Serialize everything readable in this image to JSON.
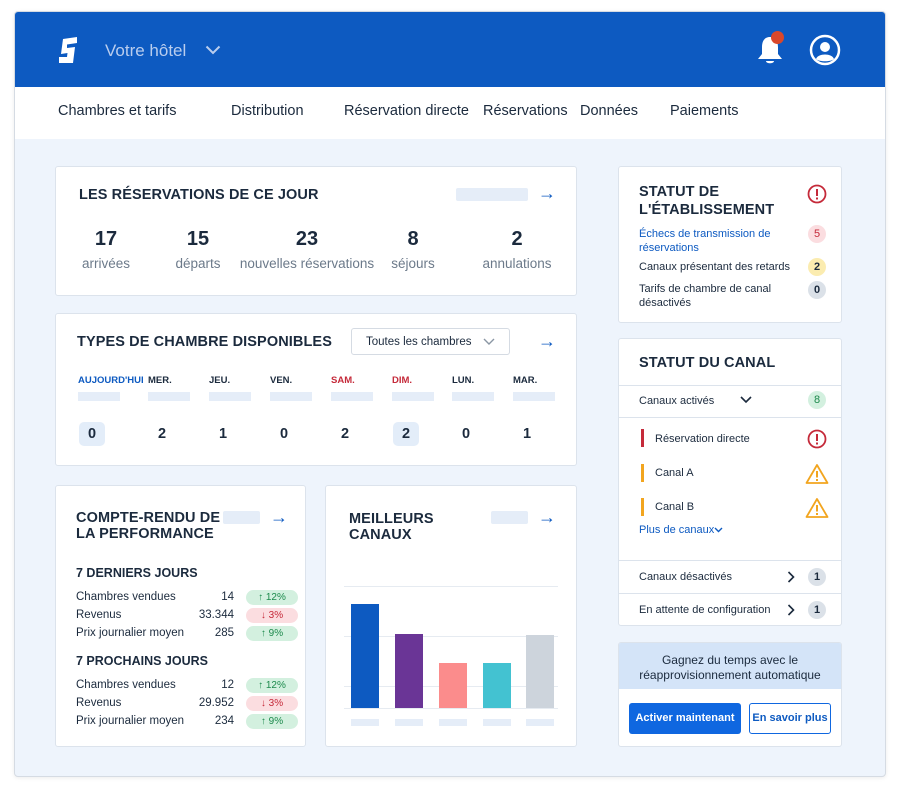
{
  "header": {
    "hotel_name": "Votre hôtel",
    "brand_color": "#0d5ac1"
  },
  "nav": {
    "items": [
      "Chambres et tarifs",
      "Distribution",
      "Réservation directe",
      "Réservations",
      "Données",
      "Paiements"
    ]
  },
  "today": {
    "title": "LES RÉSERVATIONS DE CE JOUR",
    "stats": [
      {
        "value": "17",
        "label": "arrivées"
      },
      {
        "value": "15",
        "label": "départs"
      },
      {
        "value": "23",
        "label": "nouvelles réservations"
      },
      {
        "value": "8",
        "label": "séjours"
      },
      {
        "value": "2",
        "label": "annulations"
      }
    ]
  },
  "room_types": {
    "title": "TYPES DE CHAMBRE DISPONIBLES",
    "filter": "Toutes les chambres",
    "days": [
      {
        "label": "AUJOURD'HUI",
        "value": "0",
        "color": "#0d5ac1",
        "highlight": true
      },
      {
        "label": "MER.",
        "value": "2",
        "color": "#1b2a3d",
        "highlight": false
      },
      {
        "label": "JEU.",
        "value": "1",
        "color": "#1b2a3d",
        "highlight": false
      },
      {
        "label": "VEN.",
        "value": "0",
        "color": "#1b2a3d",
        "highlight": false
      },
      {
        "label": "SAM.",
        "value": "2",
        "color": "#c52a3a",
        "highlight": false
      },
      {
        "label": "DIM.",
        "value": "2",
        "color": "#c52a3a",
        "highlight": true
      },
      {
        "label": "LUN.",
        "value": "0",
        "color": "#1b2a3d",
        "highlight": false
      },
      {
        "label": "MAR.",
        "value": "1",
        "color": "#1b2a3d",
        "highlight": false
      }
    ]
  },
  "performance": {
    "title_line1": "COMPTE-RENDU DE",
    "title_line2": "LA PERFORMANCE",
    "past": {
      "title": "7 DERNIERS JOURS",
      "rows": [
        {
          "label": "Chambres vendues",
          "value": "14",
          "delta": "↑ 12%",
          "dir": "up"
        },
        {
          "label": "Revenus",
          "value": "33.344",
          "delta": "↓ 3%",
          "dir": "down"
        },
        {
          "label": "Prix journalier moyen",
          "value": "285",
          "delta": "↑ 9%",
          "dir": "up"
        }
      ]
    },
    "next": {
      "title": "7 PROCHAINS JOURS",
      "rows": [
        {
          "label": "Chambres vendues",
          "value": "12",
          "delta": "↑ 12%",
          "dir": "up"
        },
        {
          "label": "Revenus",
          "value": "29.952",
          "delta": "↓ 3%",
          "dir": "down"
        },
        {
          "label": "Prix journalier moyen",
          "value": "234",
          "delta": "↑ 9%",
          "dir": "up"
        }
      ]
    }
  },
  "best_channels": {
    "title_line1": "MEILLEURS",
    "title_line2": "CANAUX"
  },
  "chart_data": {
    "type": "bar",
    "categories": [
      "",
      "",
      "",
      "",
      ""
    ],
    "values": [
      100,
      71,
      43,
      43,
      70
    ],
    "colors": [
      "#0d5ac1",
      "#6a3596",
      "#fb8c8c",
      "#43c2d1",
      "#cdd4dc"
    ],
    "ylim": [
      0,
      115
    ],
    "grid": true
  },
  "property_status": {
    "title_line1": "STATUT DE",
    "title_line2": "L'ÉTABLISSEMENT",
    "items": [
      {
        "line1": "Échecs de transmission de",
        "line2": "réservations",
        "count": "5",
        "style": "red",
        "link": true
      },
      {
        "line1": "Canaux présentant des retards",
        "line2": "",
        "count": "2",
        "style": "yellow",
        "link": false
      },
      {
        "line1": "Tarifs de chambre de canal",
        "line2": "désactivés",
        "count": "0",
        "style": "gray",
        "link": false
      }
    ]
  },
  "channel_status": {
    "title": "STATUT DU CANAL",
    "activated_label": "Canaux activés",
    "activated_count": "8",
    "channels": [
      {
        "name": "Réservation directe",
        "color": "#c52a3a",
        "alert": "error"
      },
      {
        "name": "Canal A",
        "color": "#f2a51f",
        "alert": "warning"
      },
      {
        "name": "Canal B",
        "color": "#f2a51f",
        "alert": "warning"
      }
    ],
    "more_label": "Plus de canaux",
    "disabled_label": "Canaux désactivés",
    "disabled_count": "1",
    "pending_label": "En attente de configuration",
    "pending_count": "1"
  },
  "promo": {
    "line1": "Gagnez du temps avec le",
    "line2": "réapprovisionnement automatique",
    "primary": "Activer maintenant",
    "secondary": "En savoir plus"
  }
}
